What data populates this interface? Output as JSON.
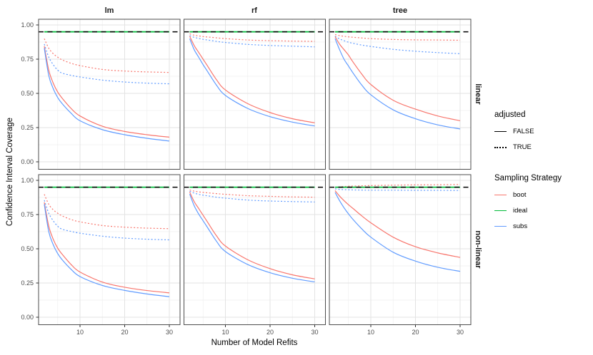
{
  "chart_data": {
    "type": "line",
    "facet_col_labels": [
      "lm",
      "rf",
      "tree"
    ],
    "facet_row_labels": [
      "linear",
      "non-linear"
    ],
    "xlabel": "Number of Model Refits",
    "ylabel": "Confidence Interval Coverage",
    "x_tick_labels": [
      "10",
      "20",
      "30"
    ],
    "x_tick_values": [
      10,
      20,
      30
    ],
    "x_minor_values": [
      5,
      15,
      25
    ],
    "y_tick_labels": [
      "1.00",
      "0.75",
      "0.50",
      "0.25",
      "0.00"
    ],
    "y_tick_values": [
      1.0,
      0.75,
      0.5,
      0.25,
      0.0
    ],
    "y_minor_values": [
      0.875,
      0.625,
      0.375,
      0.125
    ],
    "x_data_range": [
      2,
      30
    ],
    "ylim": [
      0,
      1
    ],
    "grid": true,
    "legend_position": "right",
    "reference_line": {
      "y": 0.95,
      "color": "#000000",
      "style": "dashed"
    },
    "legend": {
      "adjusted": {
        "title": "adjusted",
        "entries": [
          {
            "label": "FALSE",
            "style": "solid",
            "color": "#000000"
          },
          {
            "label": "TRUE",
            "style": "dotted",
            "color": "#000000"
          }
        ]
      },
      "sampling": {
        "title": "Sampling Strategy",
        "entries": [
          {
            "label": "boot",
            "color": "#F8766D"
          },
          {
            "label": "ideal",
            "color": "#00BA38"
          },
          {
            "label": "subs",
            "color": "#619CFF"
          }
        ]
      }
    },
    "x": [
      2,
      3,
      4,
      5,
      6,
      8,
      10,
      15,
      20,
      25,
      30
    ],
    "facets": [
      {
        "row": "linear",
        "col": "lm",
        "series": [
          {
            "strategy": "boot",
            "adjusted": "TRUE",
            "values": [
              0.9,
              0.83,
              0.79,
              0.765,
              0.745,
              0.72,
              0.703,
              0.675,
              0.663,
              0.657,
              0.653
            ]
          },
          {
            "strategy": "subs",
            "adjusted": "TRUE",
            "values": [
              0.86,
              0.765,
              0.71,
              0.67,
              0.648,
              0.632,
              0.62,
              0.597,
              0.583,
              0.575,
              0.57
            ]
          },
          {
            "strategy": "boot",
            "adjusted": "FALSE",
            "values": [
              0.845,
              0.67,
              0.575,
              0.51,
              0.465,
              0.39,
              0.335,
              0.26,
              0.222,
              0.198,
              0.18
            ]
          },
          {
            "strategy": "subs",
            "adjusted": "FALSE",
            "values": [
              0.83,
              0.63,
              0.535,
              0.47,
              0.425,
              0.355,
              0.3,
              0.235,
              0.198,
              0.172,
              0.152
            ]
          },
          {
            "strategy": "ideal",
            "adjusted": "FALSE",
            "values": [
              0.95,
              0.95,
              0.95,
              0.95,
              0.95,
              0.95,
              0.95,
              0.95,
              0.95,
              0.95,
              0.95
            ]
          }
        ]
      },
      {
        "row": "linear",
        "col": "rf",
        "series": [
          {
            "strategy": "boot",
            "adjusted": "TRUE",
            "values": [
              0.935,
              0.925,
              0.92,
              0.915,
              0.912,
              0.906,
              0.9,
              0.89,
              0.885,
              0.882,
              0.88
            ]
          },
          {
            "strategy": "subs",
            "adjusted": "TRUE",
            "values": [
              0.922,
              0.91,
              0.902,
              0.895,
              0.89,
              0.88,
              0.872,
              0.858,
              0.85,
              0.845,
              0.84
            ]
          },
          {
            "strategy": "boot",
            "adjusted": "FALSE",
            "values": [
              0.918,
              0.85,
              0.8,
              0.75,
              0.7,
              0.6,
              0.525,
              0.425,
              0.36,
              0.315,
              0.285
            ]
          },
          {
            "strategy": "subs",
            "adjusted": "FALSE",
            "values": [
              0.9,
              0.82,
              0.765,
              0.71,
              0.66,
              0.56,
              0.485,
              0.39,
              0.33,
              0.29,
              0.262
            ]
          },
          {
            "strategy": "ideal",
            "adjusted": "FALSE",
            "values": [
              0.95,
              0.95,
              0.95,
              0.95,
              0.95,
              0.95,
              0.95,
              0.95,
              0.95,
              0.95,
              0.95
            ]
          }
        ]
      },
      {
        "row": "linear",
        "col": "tree",
        "series": [
          {
            "strategy": "boot",
            "adjusted": "TRUE",
            "values": [
              0.93,
              0.922,
              0.917,
              0.913,
              0.91,
              0.905,
              0.9,
              0.894,
              0.891,
              0.89,
              0.888
            ]
          },
          {
            "strategy": "subs",
            "adjusted": "TRUE",
            "values": [
              0.918,
              0.898,
              0.885,
              0.874,
              0.866,
              0.853,
              0.843,
              0.822,
              0.808,
              0.798,
              0.79
            ]
          },
          {
            "strategy": "boot",
            "adjusted": "FALSE",
            "values": [
              0.915,
              0.86,
              0.82,
              0.78,
              0.73,
              0.64,
              0.565,
              0.45,
              0.385,
              0.335,
              0.3
            ]
          },
          {
            "strategy": "subs",
            "adjusted": "FALSE",
            "values": [
              0.9,
              0.82,
              0.75,
              0.7,
              0.65,
              0.56,
              0.49,
              0.38,
              0.315,
              0.27,
              0.24
            ]
          },
          {
            "strategy": "ideal",
            "adjusted": "FALSE",
            "values": [
              0.95,
              0.95,
              0.95,
              0.95,
              0.95,
              0.95,
              0.95,
              0.95,
              0.95,
              0.95,
              0.95
            ]
          }
        ]
      },
      {
        "row": "non-linear",
        "col": "lm",
        "series": [
          {
            "strategy": "boot",
            "adjusted": "TRUE",
            "values": [
              0.898,
              0.825,
              0.785,
              0.76,
              0.74,
              0.714,
              0.697,
              0.67,
              0.658,
              0.651,
              0.647
            ]
          },
          {
            "strategy": "subs",
            "adjusted": "TRUE",
            "values": [
              0.855,
              0.76,
              0.705,
              0.665,
              0.643,
              0.627,
              0.614,
              0.592,
              0.578,
              0.57,
              0.565
            ]
          },
          {
            "strategy": "boot",
            "adjusted": "FALSE",
            "values": [
              0.84,
              0.665,
              0.57,
              0.505,
              0.46,
              0.385,
              0.33,
              0.257,
              0.219,
              0.195,
              0.178
            ]
          },
          {
            "strategy": "subs",
            "adjusted": "FALSE",
            "values": [
              0.825,
              0.625,
              0.53,
              0.465,
              0.42,
              0.35,
              0.297,
              0.232,
              0.196,
              0.17,
              0.15
            ]
          },
          {
            "strategy": "ideal",
            "adjusted": "FALSE",
            "values": [
              0.95,
              0.95,
              0.95,
              0.95,
              0.95,
              0.95,
              0.95,
              0.95,
              0.95,
              0.95,
              0.95
            ]
          }
        ]
      },
      {
        "row": "non-linear",
        "col": "rf",
        "series": [
          {
            "strategy": "boot",
            "adjusted": "TRUE",
            "values": [
              0.93,
              0.921,
              0.916,
              0.912,
              0.909,
              0.903,
              0.898,
              0.888,
              0.883,
              0.879,
              0.877
            ]
          },
          {
            "strategy": "subs",
            "adjusted": "TRUE",
            "values": [
              0.92,
              0.907,
              0.898,
              0.892,
              0.887,
              0.877,
              0.87,
              0.856,
              0.849,
              0.845,
              0.842
            ]
          },
          {
            "strategy": "boot",
            "adjusted": "FALSE",
            "values": [
              0.915,
              0.845,
              0.795,
              0.745,
              0.695,
              0.595,
              0.52,
              0.42,
              0.355,
              0.31,
              0.28
            ]
          },
          {
            "strategy": "subs",
            "adjusted": "FALSE",
            "values": [
              0.9,
              0.815,
              0.755,
              0.705,
              0.655,
              0.555,
              0.48,
              0.385,
              0.325,
              0.285,
              0.258
            ]
          },
          {
            "strategy": "ideal",
            "adjusted": "FALSE",
            "values": [
              0.95,
              0.95,
              0.95,
              0.95,
              0.95,
              0.95,
              0.95,
              0.95,
              0.95,
              0.95,
              0.95
            ]
          }
        ]
      },
      {
        "row": "non-linear",
        "col": "tree",
        "series": [
          {
            "strategy": "boot",
            "adjusted": "TRUE",
            "values": [
              0.948,
              0.952,
              0.955,
              0.957,
              0.958,
              0.96,
              0.962,
              0.965,
              0.967,
              0.968,
              0.97
            ]
          },
          {
            "strategy": "subs",
            "adjusted": "TRUE",
            "values": [
              0.938,
              0.934,
              0.932,
              0.931,
              0.93,
              0.929,
              0.928,
              0.928,
              0.927,
              0.927,
              0.926
            ]
          },
          {
            "strategy": "boot",
            "adjusted": "FALSE",
            "values": [
              0.925,
              0.885,
              0.852,
              0.822,
              0.795,
              0.74,
              0.69,
              0.585,
              0.515,
              0.47,
              0.437
            ]
          },
          {
            "strategy": "subs",
            "adjusted": "FALSE",
            "values": [
              0.912,
              0.852,
              0.8,
              0.755,
              0.715,
              0.645,
              0.585,
              0.475,
              0.41,
              0.365,
              0.335
            ]
          },
          {
            "strategy": "ideal",
            "adjusted": "FALSE",
            "values": [
              0.95,
              0.95,
              0.95,
              0.95,
              0.95,
              0.95,
              0.95,
              0.95,
              0.95,
              0.95,
              0.95
            ]
          }
        ]
      }
    ]
  }
}
